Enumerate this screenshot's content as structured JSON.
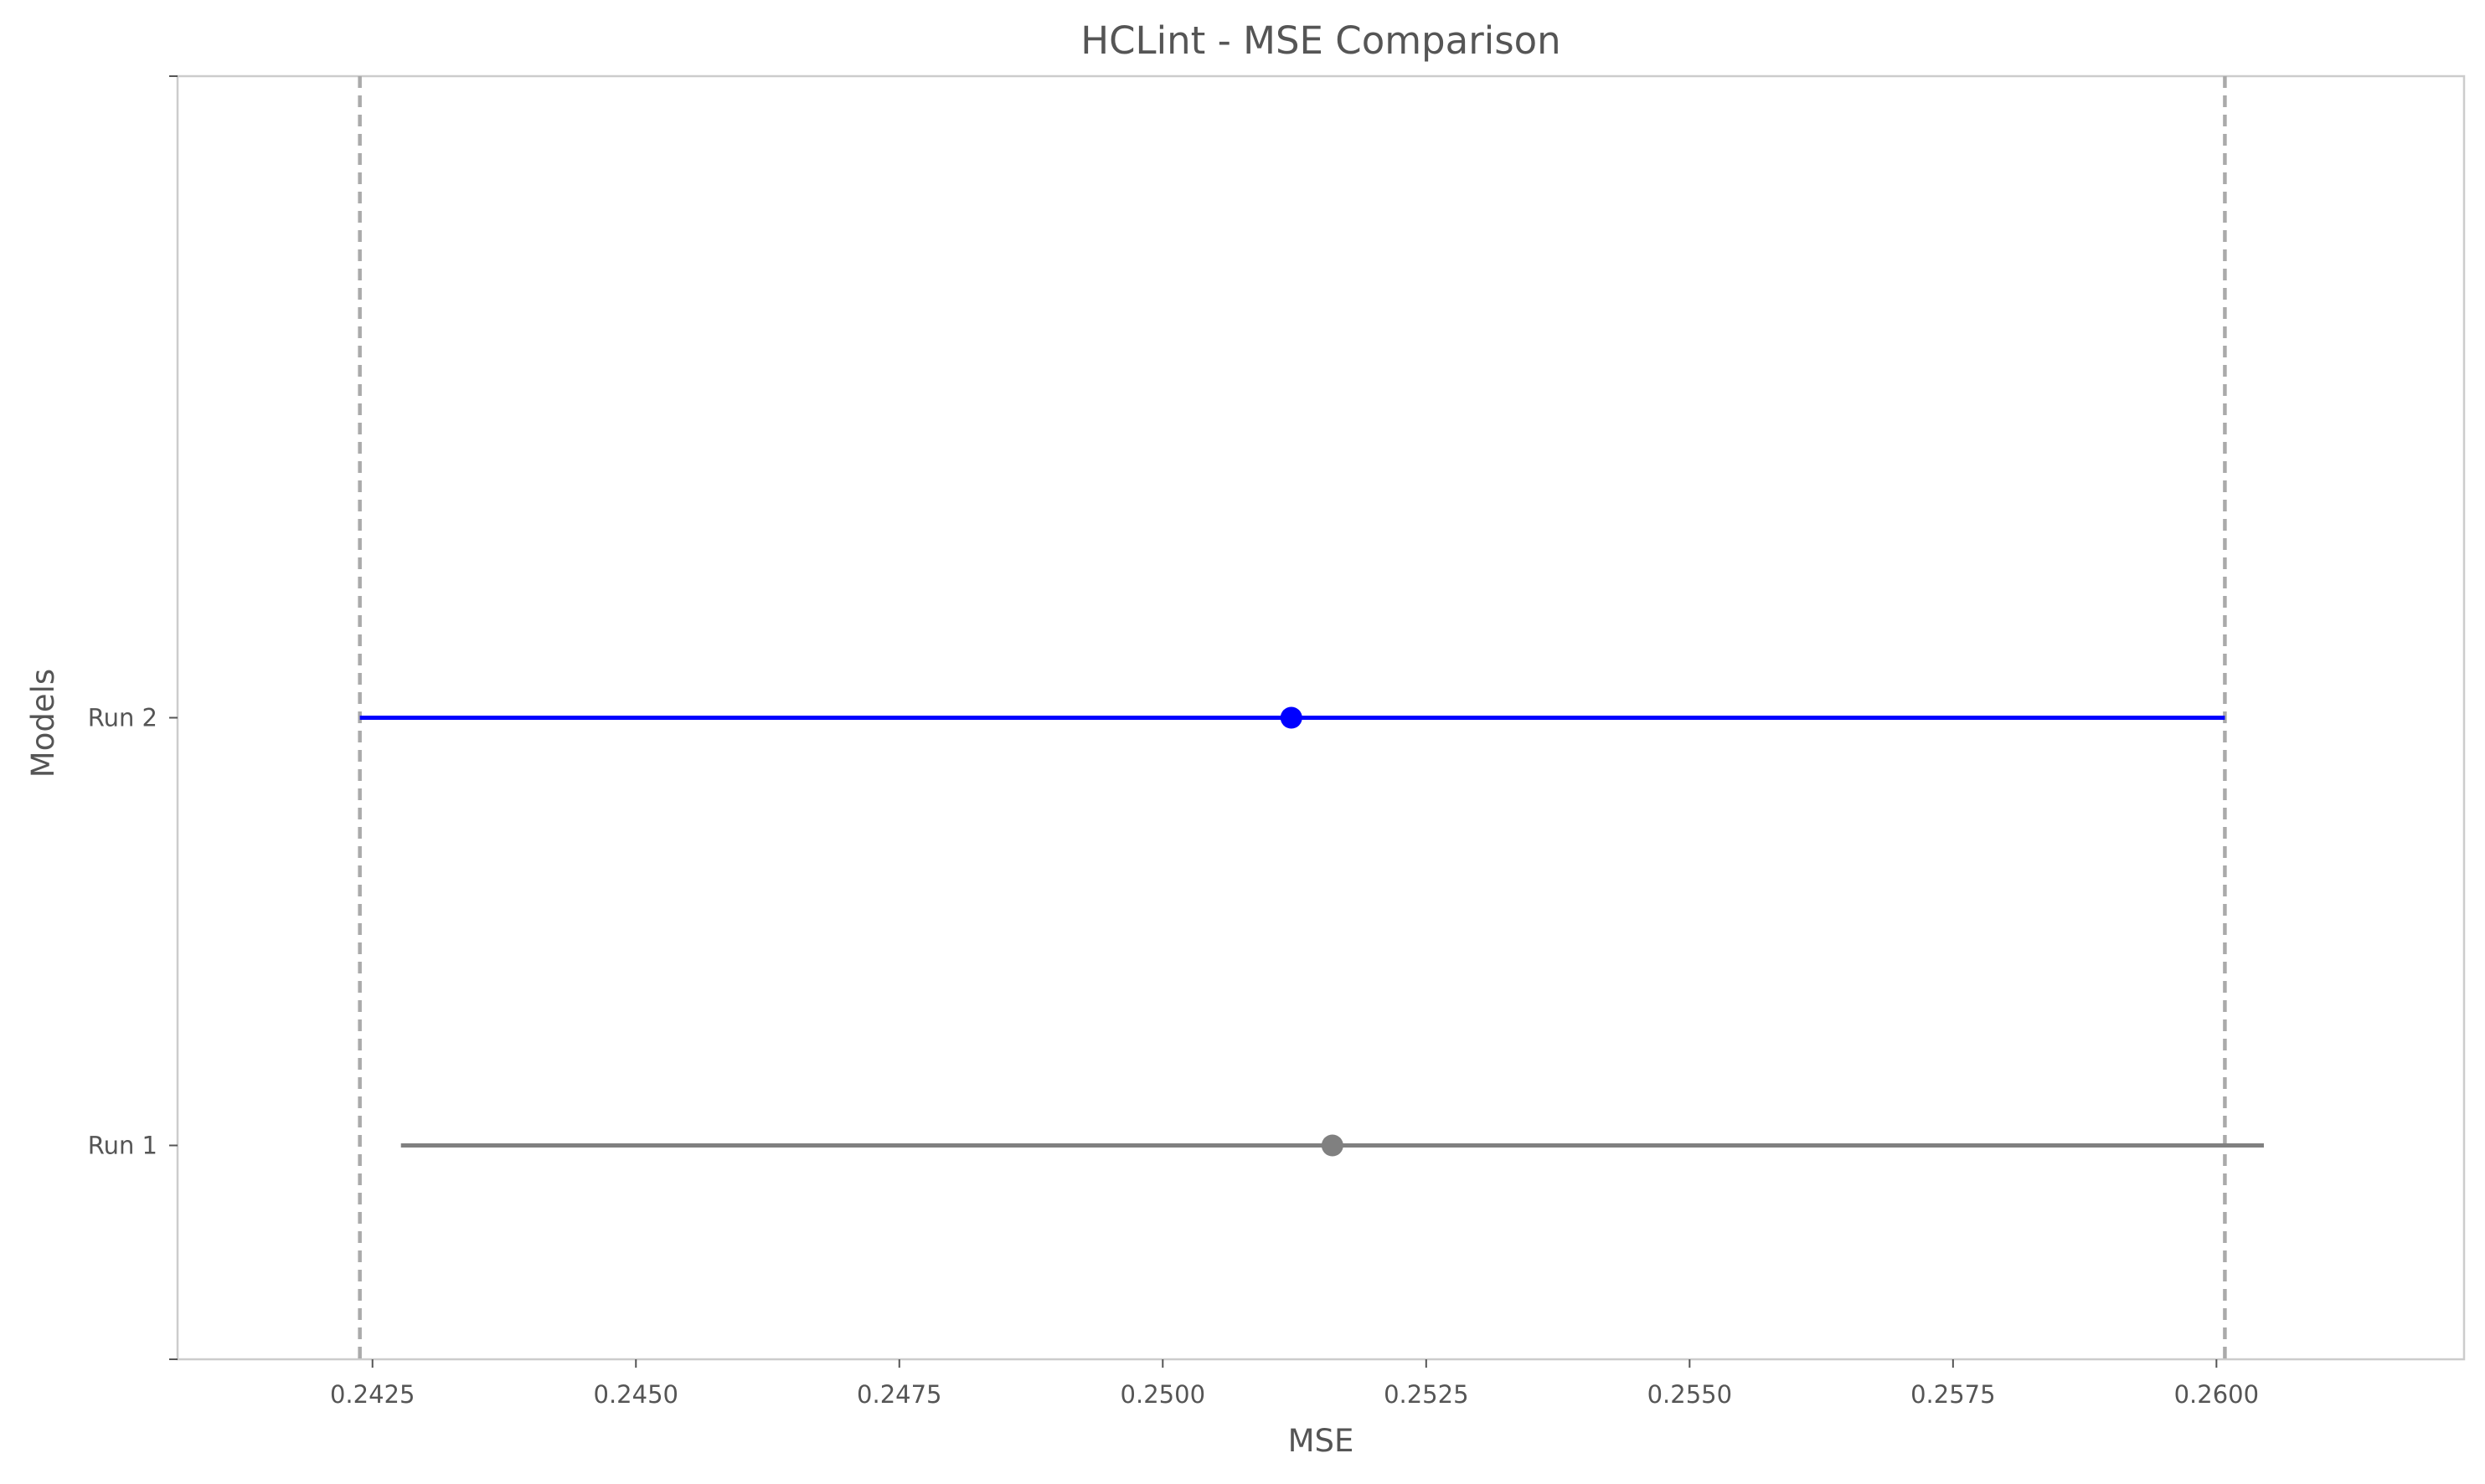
{
  "chart_data": {
    "type": "errorbar",
    "title": "HCLint  - MSE Comparison",
    "xlabel": "MSE",
    "ylabel": "Models",
    "xlim": [
      0.24065,
      0.26235
    ],
    "ylim": [
      -0.5,
      2.5
    ],
    "xticks": [
      0.2425,
      0.245,
      0.2475,
      0.25,
      0.2525,
      0.255,
      0.2575,
      0.26
    ],
    "xtick_labels": [
      "0.2425",
      "0.2450",
      "0.2475",
      "0.2500",
      "0.2525",
      "0.2550",
      "0.2575",
      "0.2600"
    ],
    "categories": [
      "Run 1",
      "Run 2"
    ],
    "series": [
      {
        "category": "Run 1",
        "mean": 0.25161,
        "low": 0.24277,
        "high": 0.26045,
        "color": "#808080"
      },
      {
        "category": "Run 2",
        "mean": 0.25122,
        "low": 0.24238,
        "high": 0.26008,
        "color": "#0000ff"
      }
    ],
    "reference_lines": [
      {
        "x": 0.24238,
        "style": "dashed",
        "color": "#aaaaaa"
      },
      {
        "x": 0.26008,
        "style": "dashed",
        "color": "#aaaaaa"
      }
    ],
    "grid": false
  }
}
